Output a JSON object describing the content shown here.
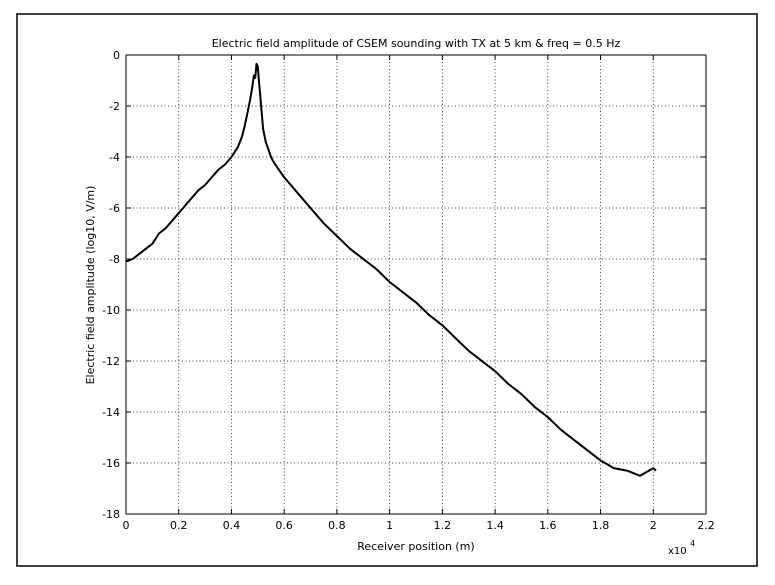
{
  "chart_data": {
    "type": "line",
    "title": "Electric field amplitude of CSEM sounding with TX at 5 km & freq = 0.5 Hz",
    "xlabel": "Receiver position (m)",
    "ylabel": "Electric field amplitude (log10, V/m)",
    "x_multiplier_label": "x10",
    "x_multiplier_exponent": "4",
    "xlim": [
      0,
      22000
    ],
    "ylim": [
      -18,
      0
    ],
    "x_ticks": [
      0,
      2000,
      4000,
      6000,
      8000,
      10000,
      12000,
      14000,
      16000,
      18000,
      20000,
      22000
    ],
    "x_tick_labels": [
      "0",
      "0.2",
      "0.4",
      "0.6",
      "0.8",
      "1",
      "1.2",
      "1.4",
      "1.6",
      "1.8",
      "2",
      "2.2"
    ],
    "y_ticks": [
      0,
      -2,
      -4,
      -6,
      -8,
      -10,
      -12,
      -14,
      -16,
      -18
    ],
    "y_tick_labels": [
      "0",
      "-2",
      "-4",
      "-6",
      "-8",
      "-10",
      "-12",
      "-14",
      "-16",
      "-18"
    ],
    "grid": true,
    "line_color": "#000000",
    "series": [
      {
        "x": [
          0,
          250,
          500,
          750,
          1000,
          1250,
          1500,
          1750,
          2000,
          2250,
          2500,
          2750,
          3000,
          3250,
          3500,
          3750,
          4000,
          4250,
          4400,
          4500,
          4600,
          4700,
          4800,
          4850,
          4900,
          4950,
          5000,
          5050,
          5100,
          5150,
          5200,
          5300,
          5400,
          5500,
          5600,
          5800,
          6000,
          6250,
          6500,
          7000,
          7500,
          8000,
          8500,
          9000,
          9500,
          10000,
          10500,
          11000,
          11500,
          12000,
          12500,
          13000,
          13500,
          14000,
          14500,
          15000,
          15500,
          16000,
          16500,
          17000,
          17500,
          18000,
          18500,
          19000,
          19500,
          20000,
          20100
        ],
        "y": [
          -8.1,
          -8.0,
          -7.8,
          -7.6,
          -7.4,
          -7.0,
          -6.8,
          -6.5,
          -6.2,
          -5.9,
          -5.6,
          -5.3,
          -5.1,
          -4.8,
          -4.5,
          -4.3,
          -4.0,
          -3.6,
          -3.2,
          -2.8,
          -2.3,
          -1.8,
          -1.2,
          -0.8,
          -0.9,
          -0.35,
          -0.45,
          -1.1,
          -1.7,
          -2.3,
          -2.9,
          -3.4,
          -3.7,
          -4.0,
          -4.2,
          -4.5,
          -4.8,
          -5.1,
          -5.4,
          -6.0,
          -6.6,
          -7.1,
          -7.6,
          -8.0,
          -8.4,
          -8.9,
          -9.3,
          -9.7,
          -10.2,
          -10.6,
          -11.1,
          -11.6,
          -12.0,
          -12.4,
          -12.9,
          -13.3,
          -13.8,
          -14.2,
          -14.7,
          -15.1,
          -15.5,
          -15.9,
          -16.2,
          -16.3,
          -16.5,
          -16.2,
          -16.3
        ]
      }
    ]
  }
}
